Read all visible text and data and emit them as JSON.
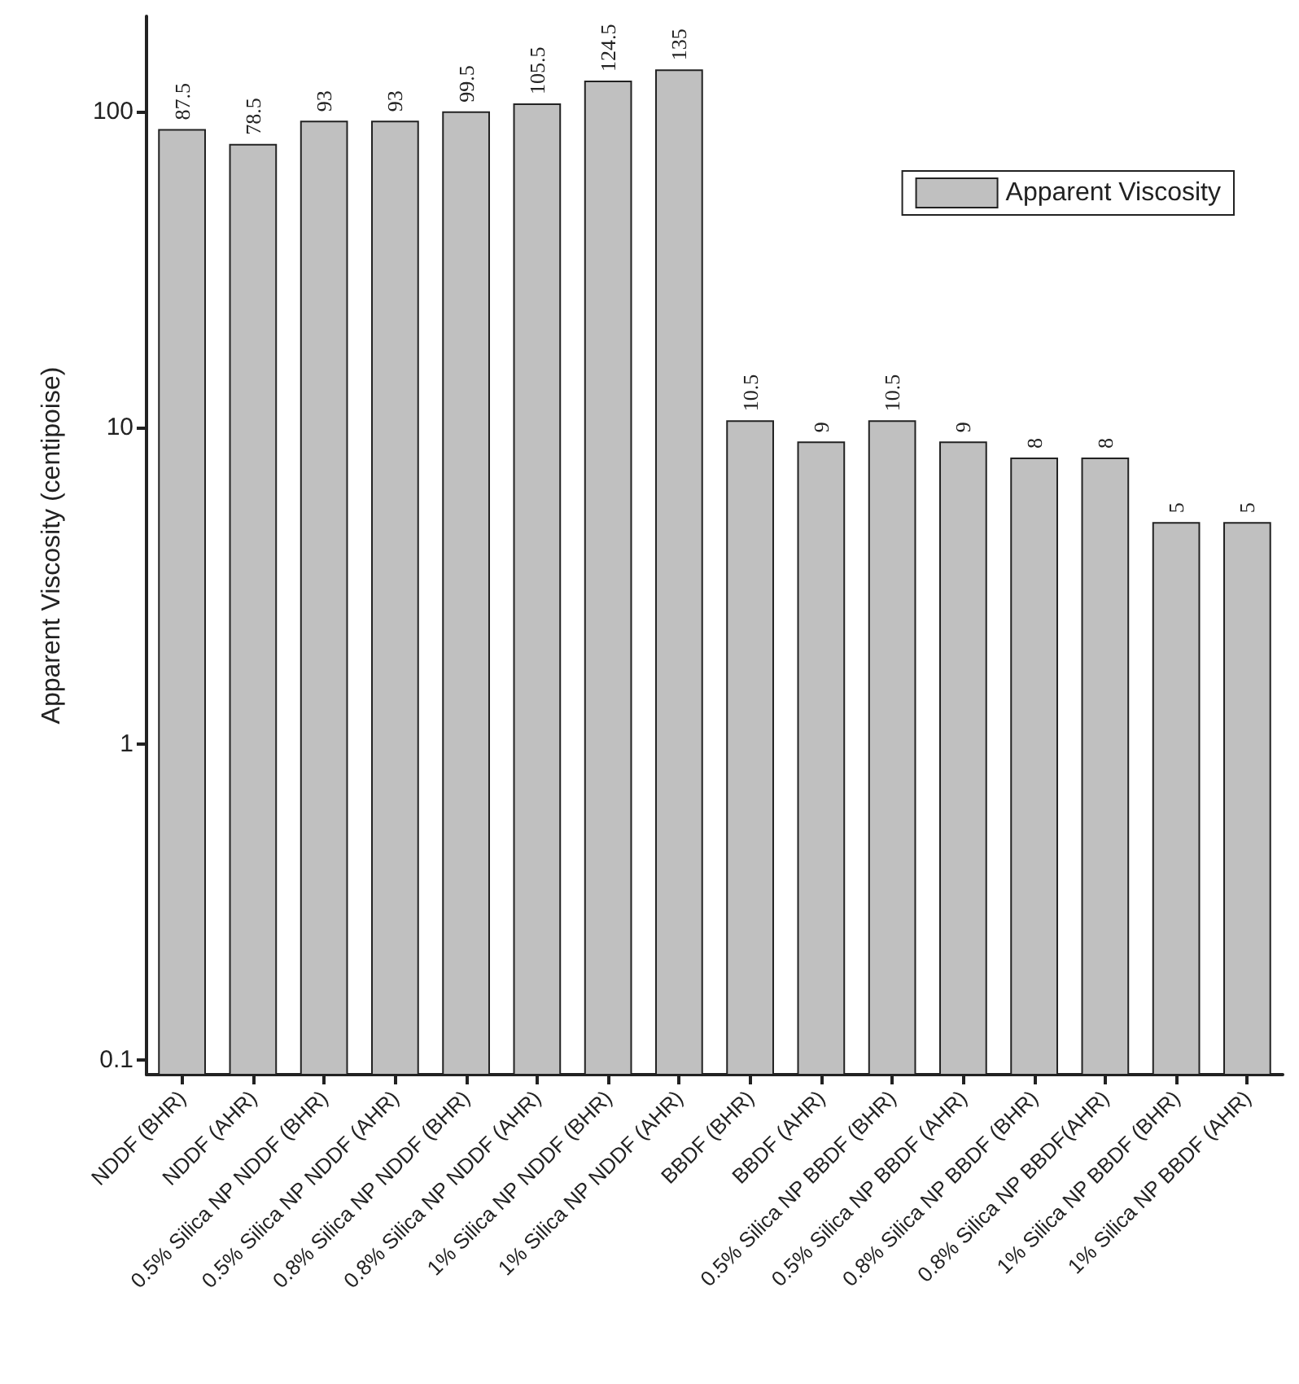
{
  "chart_data": {
    "type": "bar",
    "ylabel": "Apparent Viscosity (centipoise)",
    "categories": [
      "NDDF (BHR)",
      "NDDF (AHR)",
      "0.5% Silica NP NDDF (BHR)",
      "0.5% Silica NP NDDF (AHR)",
      "0.8% Silica NP NDDF (BHR)",
      "0.8% Silica NP NDDF (AHR)",
      "1% Silica NP NDDF (BHR)",
      "1% Silica NP NDDF (AHR)",
      "BBDF (BHR)",
      "BBDF (AHR)",
      "0.5% Silica NP BBDF (BHR)",
      "0.5% Silica NP BBDF (AHR)",
      "0.8% Silica NP BBDF (BHR)",
      "0.8% Silica NP BBDF(AHR)",
      "1% Silica NP BBDF (BHR)",
      "1% Silica NP BBDF (AHR)"
    ],
    "series": [
      {
        "name": "Apparent Viscosity",
        "color": "#c0c0c0",
        "values": [
          87.5,
          78.5,
          93,
          93,
          99.5,
          105.5,
          124.5,
          135,
          10.5,
          9,
          10.5,
          9,
          8,
          8,
          5,
          5
        ]
      }
    ],
    "ylim": [
      0.09,
      200
    ],
    "yticks": [
      0.1,
      1,
      10,
      100
    ],
    "log": true,
    "grid": false,
    "legend": "top right",
    "data_labels": true
  }
}
